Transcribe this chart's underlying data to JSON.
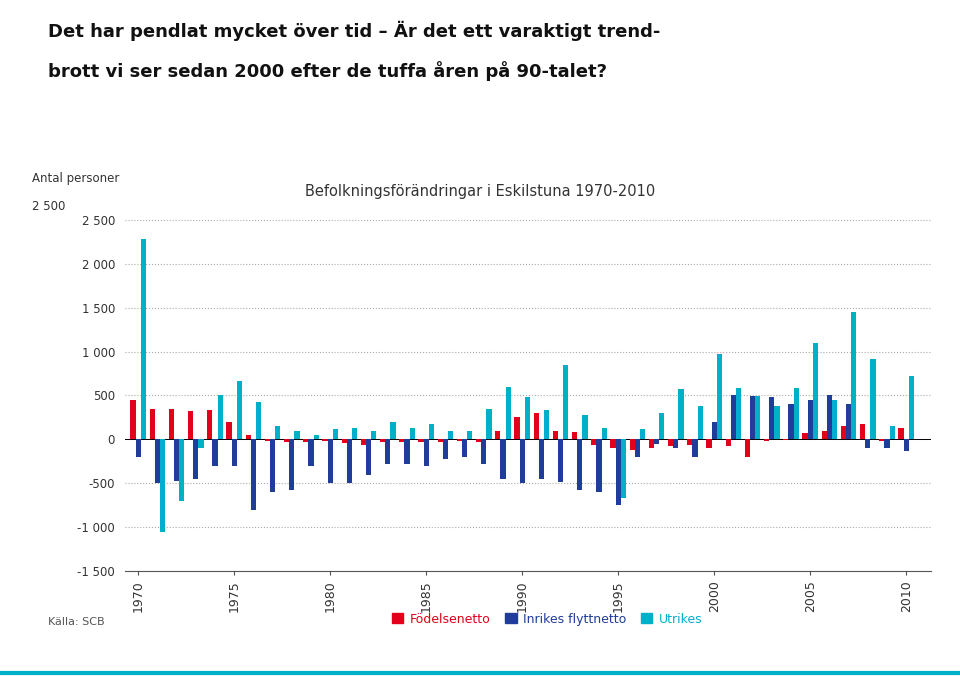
{
  "title_line1": "Det har pendlat mycket över tid – Är det ett varaktigt trend-",
  "title_line2": "brott vi ser sedan 2000 efter de tuffa åren på 90-talet?",
  "chart_title": "Befolkningsförändringar i Eskilstuna 1970-2010",
  "ylabel_top": "Antal personer",
  "ylabel_val": "2 500",
  "source": "Källa: SCB",
  "ylim": [
    -1500,
    2500
  ],
  "yticks": [
    -1500,
    -1000,
    -500,
    0,
    500,
    1000,
    1500,
    2000,
    2500
  ],
  "ytick_labels": [
    "-1 500",
    "-1 000",
    "-500",
    "0",
    "500",
    "1 000",
    "1 500",
    "2 000",
    "2 500"
  ],
  "years": [
    1970,
    1971,
    1972,
    1973,
    1974,
    1975,
    1976,
    1977,
    1978,
    1979,
    1980,
    1981,
    1982,
    1983,
    1984,
    1985,
    1986,
    1987,
    1988,
    1989,
    1990,
    1991,
    1992,
    1993,
    1994,
    1995,
    1996,
    1997,
    1998,
    1999,
    2000,
    2001,
    2002,
    2003,
    2004,
    2005,
    2006,
    2007,
    2008,
    2009,
    2010
  ],
  "foedselnetto": [
    450,
    350,
    350,
    320,
    330,
    200,
    50,
    -20,
    -30,
    -30,
    -20,
    -40,
    -60,
    -30,
    -30,
    -30,
    -30,
    -20,
    -30,
    100,
    250,
    300,
    100,
    80,
    -60,
    -100,
    -120,
    -100,
    -80,
    -60,
    -100,
    -80,
    -200,
    -20,
    -10,
    70,
    100,
    150,
    170,
    -20,
    130
  ],
  "inrikes_flyttnetto": [
    -200,
    -500,
    -470,
    -450,
    -300,
    -300,
    -800,
    -600,
    -580,
    -300,
    -500,
    -500,
    -400,
    -280,
    -280,
    -300,
    -220,
    -200,
    -280,
    -450,
    -500,
    -450,
    -480,
    -580,
    -600,
    -750,
    -200,
    -50,
    -100,
    -200,
    200,
    500,
    490,
    480,
    400,
    450,
    500,
    400,
    -100,
    -100,
    -130
  ],
  "utrikes": [
    2280,
    -1050,
    -700,
    -100,
    500,
    660,
    420,
    150,
    100,
    50,
    120,
    130,
    100,
    200,
    130,
    170,
    100,
    100,
    350,
    600,
    480,
    330,
    850,
    280,
    130,
    -670,
    120,
    300,
    570,
    380,
    970,
    580,
    490,
    380,
    580,
    1100,
    450,
    1450,
    920,
    150,
    720
  ],
  "color_foedselnetto": "#e2001a",
  "color_inrikes": "#1f3d99",
  "color_utrikes": "#00b0c8",
  "legend_labels": [
    "Födelsenetto",
    "Inrikes flyttnetto",
    "Utrikes"
  ],
  "bar_width": 0.27,
  "background_color": "#ffffff",
  "grid_color": "#aaaaaa",
  "xtick_years": [
    1970,
    1975,
    1980,
    1985,
    1990,
    1995,
    2000,
    2005,
    2010
  ]
}
